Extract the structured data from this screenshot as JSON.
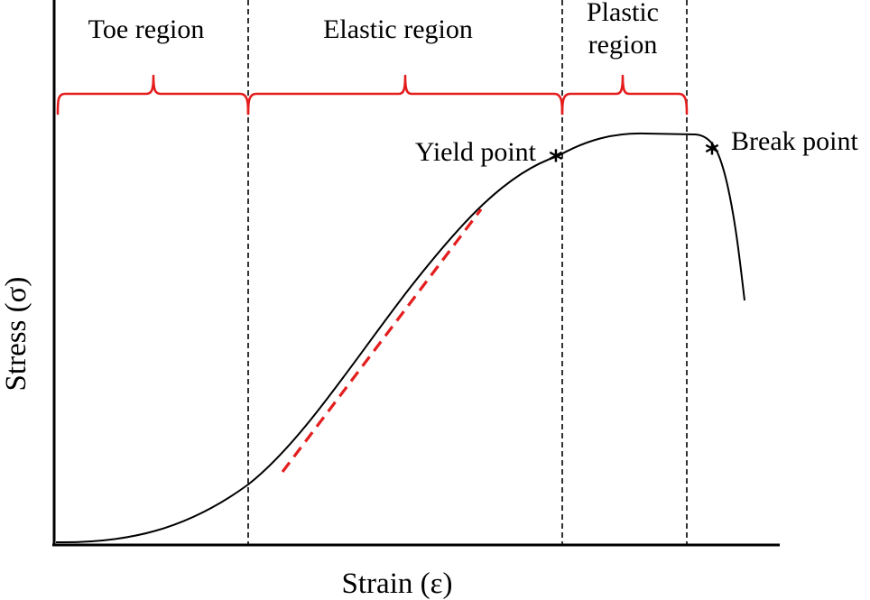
{
  "diagram": {
    "regions": [
      {
        "id": "toe",
        "label_lines": [
          "Toe region"
        ]
      },
      {
        "id": "elastic",
        "label_lines": [
          "Elastic region"
        ]
      },
      {
        "id": "plastic",
        "label_lines": [
          "Plastic",
          "region"
        ]
      }
    ],
    "points": {
      "yield": {
        "label": "Yield point",
        "marker": "*"
      },
      "break": {
        "label": "Break point",
        "marker": "*"
      }
    },
    "axes": {
      "x_label": "Strain (ε)",
      "y_label": "Stress (σ)"
    },
    "colors": {
      "axis": "#000000",
      "curve": "#000000",
      "brace": "#e41e1e",
      "tangent": "#e41e1e"
    }
  }
}
